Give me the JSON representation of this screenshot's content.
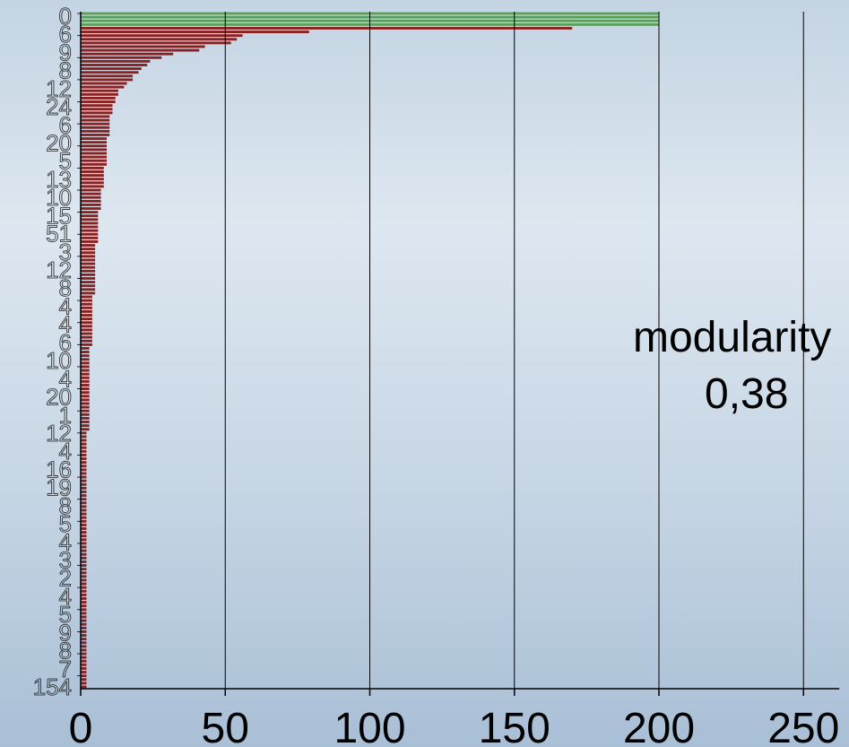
{
  "chart_data": {
    "type": "bar",
    "orientation": "horizontal",
    "title": "",
    "xlabel": "",
    "ylabel": "",
    "xlim": [
      0,
      250
    ],
    "xticks": [
      0,
      50,
      100,
      150,
      200,
      250
    ],
    "xtick_labels": [
      "0",
      "50",
      "100",
      "150",
      "200",
      "250"
    ],
    "grid": "vertical",
    "colors": {
      "highlight": "#5aa05a",
      "base": "#8b2020",
      "grid": "#000000"
    },
    "annotation": {
      "label": "modularity",
      "value": "0,38"
    },
    "category_labels_visible": [
      "0",
      "6",
      "9",
      "8",
      "12",
      "24",
      "6",
      "20",
      "5",
      "13",
      "10",
      "15",
      "51",
      "3",
      "12",
      "8",
      "4",
      "4",
      "6",
      "10",
      "4",
      "20",
      "1",
      "12",
      "4",
      "16",
      "19",
      "8",
      "5",
      "4",
      "3",
      "2",
      "4",
      "5",
      "9",
      "8",
      "7",
      "154"
    ],
    "highlight_count": 4,
    "values": [
      200,
      200,
      200,
      200,
      170,
      79,
      56,
      54,
      52,
      43,
      41,
      32,
      28,
      24,
      23,
      21,
      20,
      18,
      18,
      16,
      15,
      13,
      13,
      12,
      12,
      11,
      11,
      11,
      10,
      10,
      10,
      10,
      10,
      10,
      9,
      9,
      9,
      9,
      9,
      9,
      9,
      9,
      8,
      8,
      8,
      8,
      8,
      8,
      7,
      7,
      7,
      7,
      7,
      7,
      6,
      6,
      6,
      6,
      6,
      6,
      6,
      6,
      6,
      5,
      5,
      5,
      5,
      5,
      5,
      5,
      5,
      5,
      5,
      5,
      5,
      5,
      5,
      4,
      4,
      4,
      4,
      4,
      4,
      4,
      4,
      4,
      4,
      4,
      4,
      4,
      4,
      3,
      3,
      3,
      3,
      3,
      3,
      3,
      3,
      3,
      3,
      3,
      3,
      3,
      3,
      3,
      3,
      3,
      3,
      3,
      3,
      3,
      3,
      3,
      2,
      2,
      2,
      2,
      2,
      2,
      2,
      2,
      2,
      2,
      2,
      2,
      2,
      2,
      2,
      2,
      2,
      2,
      2,
      2,
      2,
      2,
      2,
      2,
      2,
      2,
      2,
      2,
      2,
      2,
      2,
      2,
      2,
      2,
      2,
      2,
      2,
      2,
      2,
      2,
      2,
      2,
      2,
      2,
      2,
      2,
      2,
      2,
      2,
      2,
      2,
      2,
      2,
      2,
      2,
      2,
      2,
      2,
      2,
      2,
      2,
      2,
      2,
      2,
      2,
      2,
      2,
      2,
      2,
      2
    ]
  }
}
